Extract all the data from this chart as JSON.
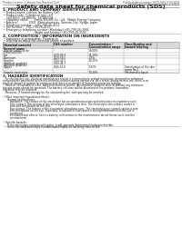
{
  "header_left": "Product name: Lithium Ion Battery Cell",
  "header_right_line1": "Publication number: SDS-001-000-010",
  "header_right_line2": "Established / Revision: Dec.1.2010",
  "title": "Safety data sheet for chemical products (SDS)",
  "section1_title": "1. PRODUCT AND COMPANY IDENTIFICATION",
  "section1_lines": [
    " • Product name: Lithium Ion Battery Cell",
    " • Product code: Cylindrical type cell",
    "    14/18650, 14/18650L, 14/18650A",
    " • Company name:      Sanyo Electric Co., Ltd.  Mobile Energy Company",
    " • Address:            2001  Kamitakamatsu, Sumoto-City, Hyogo, Japan",
    " • Telephone number:   +81-799-26-4111",
    " • Fax number:   +81-799-26-4120",
    " • Emergency telephone number (Weekday) +81-799-26-3942",
    "                                   (Night and holiday) +81-799-26-3101"
  ],
  "section2_title": "2. COMPOSITION / INFORMATION ON INGREDIENTS",
  "section2_pre": [
    " • Substance or preparation: Preparation",
    " • Information about the chemical nature of product:"
  ],
  "table_headers": [
    "Chemical name(s)",
    "CAS number",
    "Concentration /\nConcentration range",
    "Classification and\nhazard labeling"
  ],
  "table_subheader": "Several name",
  "table_rows": [
    [
      "Lithium cobalt oxide\n(LiMn/CoO2O4)",
      "-",
      "30-60%",
      ""
    ],
    [
      "Iron",
      "7439-89-6",
      "15-26%",
      ""
    ],
    [
      "Aluminum",
      "7429-90-5",
      "2-6%",
      ""
    ],
    [
      "Graphite\n(Artificial graphite)\n(Artificial graphite)",
      "7782-42-5\n7782-44-7",
      "10-25%",
      ""
    ],
    [
      "Copper",
      "7440-50-8",
      "5-15%",
      "Sensitization of the skin\ngroup No.2"
    ],
    [
      "Organic electrolyte",
      "-",
      "10-20%",
      "Inflammable liquid"
    ]
  ],
  "section3_title": "3. HAZARDS IDENTIFICATION",
  "section3_body": [
    "   For the battery can, chemical materials are stored in a hermetically sealed metal case, designed to withstand",
    "temperatures generated by electro-chemical reaction during normal use. As a result, during normal use, there is no",
    "physical danger of ignition or explosion and there is no danger of hazardous materials leakage.",
    "   However, if exposed to a fire, added mechanical shocks, decomposed, ambient electric without any measures,",
    "the gas inside cannot be operated. The battery cell case will be breached of fire-portions, hazardous",
    "materials may be released.",
    "   Moreover, if heated strongly by the surrounding fire, soot gas may be emitted.",
    "",
    " • Most important hazard and effects:",
    "      Human health effects:",
    "         Inhalation: The release of the electrolyte has an anesthesia action and stimulates in respiratory tract.",
    "         Skin contact: The release of the electrolyte stimulates a skin. The electrolyte skin contact causes a",
    "         sore and stimulation on the skin.",
    "         Eye contact: The release of the electrolyte stimulates eyes. The electrolyte eye contact causes a sore",
    "         and stimulation on the eye. Especially, a substance that causes a strong inflammation of the eye is",
    "         contained.",
    "         Environmental effects: Since a battery cell remains in the environment, do not throw out it into the",
    "         environment.",
    "",
    " • Specific hazards:",
    "      If the electrolyte contacts with water, it will generate detrimental hydrogen fluoride.",
    "      Since the used electrolyte is inflammable liquid, do not bring close to fire."
  ],
  "bg_color": "#ffffff",
  "text_color": "#1a1a1a",
  "gray_color": "#555555",
  "table_header_bg": "#d8d8d8",
  "line_color": "#aaaaaa"
}
